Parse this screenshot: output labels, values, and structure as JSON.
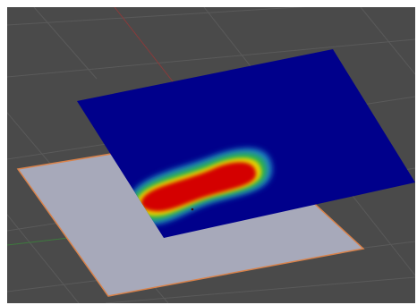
{
  "viewport": {
    "background_color": "#4a4a4a",
    "grid_color": "#5a5a5a",
    "axis_x_color": "#8a3a3a",
    "axis_y_color": "#3e7a3e"
  },
  "objects": {
    "grey_plane": {
      "fill_color": "#a7a9ba",
      "outline_color": "#d9824a",
      "selected": true
    },
    "heatmap_plane": {
      "background_color": "#00008b",
      "gradient_colors": [
        "#d40000",
        "#e8d000",
        "#2bb24a",
        "#1a7fc8",
        "#00008b"
      ],
      "hot_spot_color": "#d40000"
    }
  }
}
